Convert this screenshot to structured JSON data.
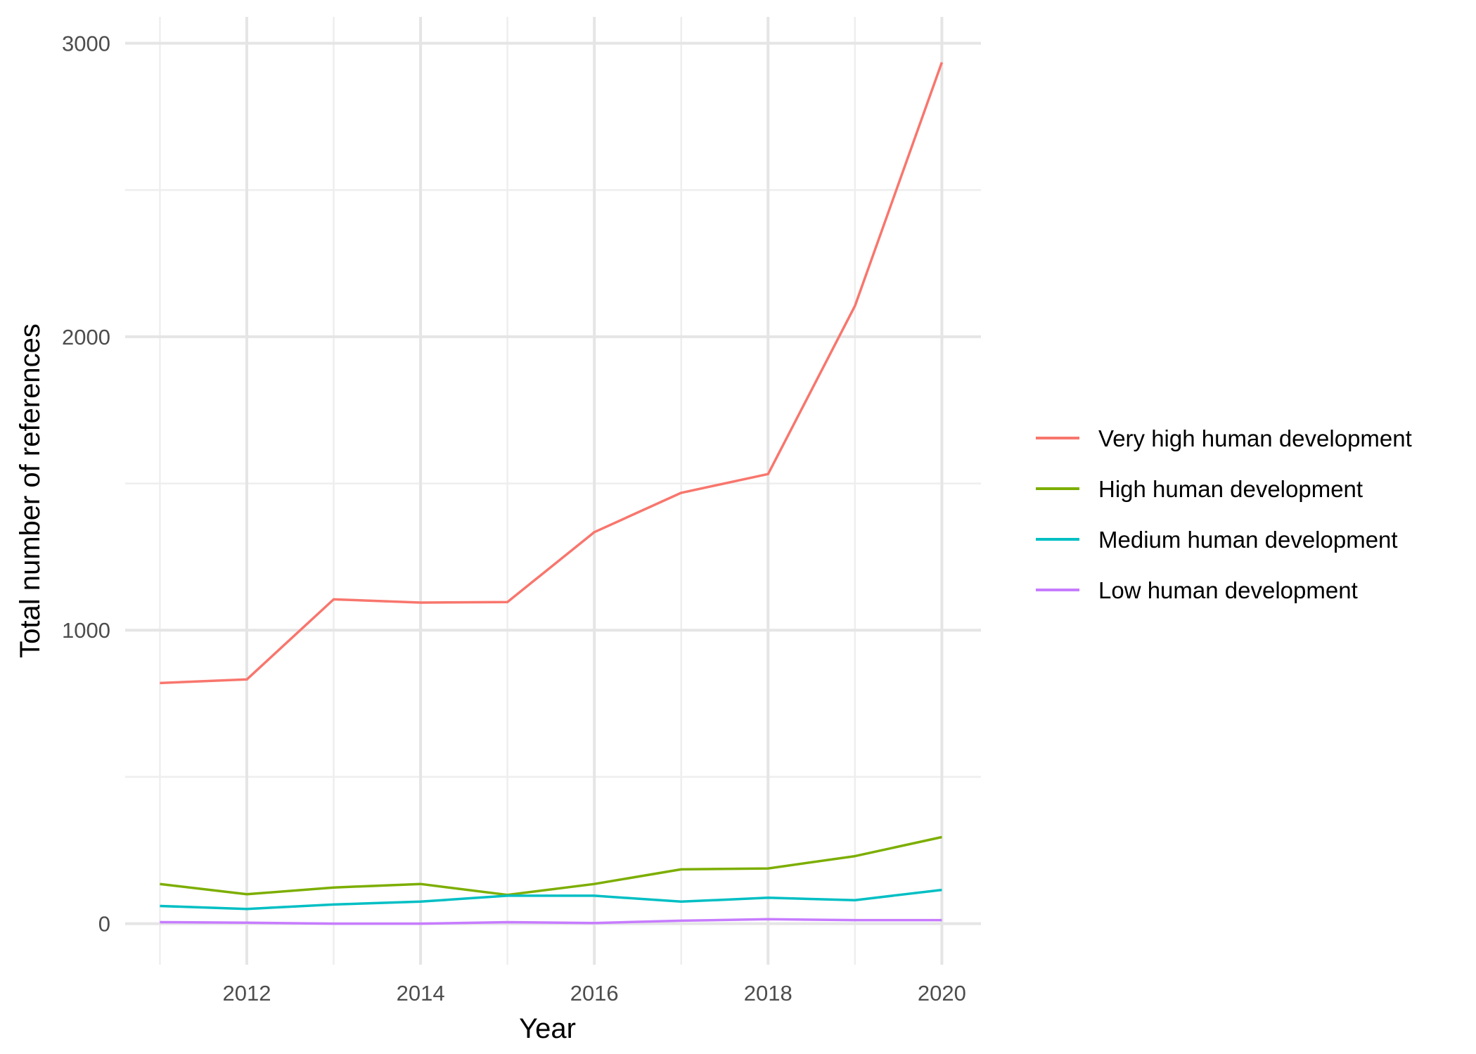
{
  "chart_data": {
    "type": "line",
    "x": [
      2011,
      2012,
      2013,
      2014,
      2015,
      2016,
      2017,
      2018,
      2019,
      2020
    ],
    "x_ticks": [
      2012,
      2014,
      2016,
      2018,
      2020
    ],
    "y_ticks": [
      0,
      1000,
      2000,
      3000
    ],
    "xlim": [
      2010.6,
      2020.45
    ],
    "ylim": [
      -140,
      3090
    ],
    "xlabel": "Year",
    "ylabel": "Total number of references",
    "grid": true,
    "legend_position": "right",
    "series": [
      {
        "name": "Very high human development",
        "color": "#F8766D",
        "values": [
          820,
          832,
          1105,
          1094,
          1096,
          1334,
          1468,
          1532,
          2105,
          2935
        ]
      },
      {
        "name": "High human development",
        "color": "#7CAE00",
        "values": [
          135,
          100,
          123,
          135,
          98,
          135,
          185,
          188,
          230,
          295
        ]
      },
      {
        "name": "Medium human development",
        "color": "#00BFC4",
        "values": [
          60,
          50,
          65,
          75,
          95,
          95,
          75,
          88,
          80,
          115
        ]
      },
      {
        "name": "Low human development",
        "color": "#C77CFF",
        "values": [
          5,
          3,
          0,
          0,
          5,
          2,
          10,
          15,
          12,
          12
        ]
      }
    ]
  }
}
